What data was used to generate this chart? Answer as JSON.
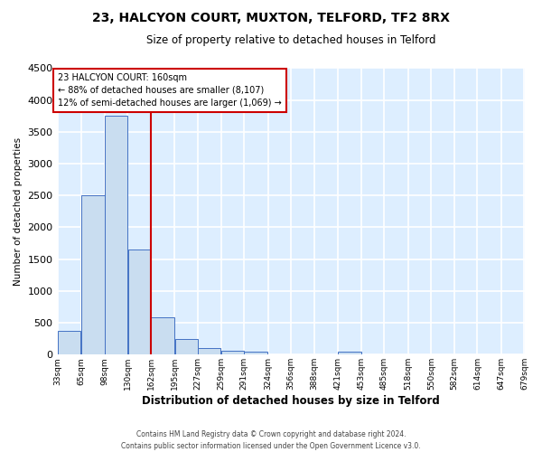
{
  "title": "23, HALCYON COURT, MUXTON, TELFORD, TF2 8RX",
  "subtitle": "Size of property relative to detached houses in Telford",
  "xlabel": "Distribution of detached houses by size in Telford",
  "ylabel": "Number of detached properties",
  "footer_line1": "Contains HM Land Registry data © Crown copyright and database right 2024.",
  "footer_line2": "Contains public sector information licensed under the Open Government Licence v3.0.",
  "property_label": "23 HALCYON COURT: 160sqm",
  "annotation_line1": "← 88% of detached houses are smaller (8,107)",
  "annotation_line2": "12% of semi-detached houses are larger (1,069) →",
  "property_size": 160,
  "bar_edges": [
    33,
    65,
    98,
    130,
    162,
    195,
    227,
    259,
    291,
    324,
    356,
    388,
    421,
    453,
    485,
    518,
    550,
    582,
    614,
    647,
    679
  ],
  "bar_heights": [
    380,
    2500,
    3750,
    1650,
    580,
    240,
    110,
    60,
    40,
    0,
    0,
    0,
    50,
    0,
    0,
    0,
    0,
    0,
    0,
    0
  ],
  "bar_color": "#c9ddf0",
  "bar_edge_color": "#4472c4",
  "vline_x": 162,
  "vline_color": "#cc0000",
  "bg_color": "#ddeeff",
  "grid_color": "#ffffff",
  "fig_bg_color": "#ffffff",
  "ylim": [
    0,
    4500
  ],
  "annotation_box_color": "#cc0000",
  "tick_labels": [
    "33sqm",
    "65sqm",
    "98sqm",
    "130sqm",
    "162sqm",
    "195sqm",
    "227sqm",
    "259sqm",
    "291sqm",
    "324sqm",
    "356sqm",
    "388sqm",
    "421sqm",
    "453sqm",
    "485sqm",
    "518sqm",
    "550sqm",
    "582sqm",
    "614sqm",
    "647sqm",
    "679sqm"
  ]
}
